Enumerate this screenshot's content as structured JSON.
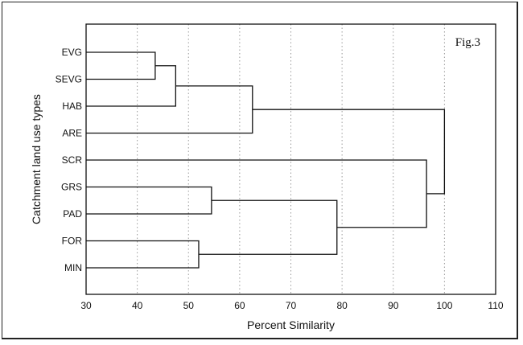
{
  "chart_data": {
    "type": "dendrogram",
    "annotation": "Fig.3",
    "xlabel": "Percent Similarity",
    "ylabel": "Catchment land use types",
    "xlim": [
      30,
      110
    ],
    "xticks": [
      30,
      40,
      50,
      60,
      70,
      80,
      90,
      100,
      110
    ],
    "grid": "vertical dotted",
    "leaves": [
      "EVG",
      "SEVG",
      "HAB",
      "ARE",
      "SCR",
      "GRS",
      "PAD",
      "FOR",
      "MIN"
    ],
    "merges": [
      {
        "id": "m1",
        "children": [
          "EVG",
          "SEVG"
        ],
        "height": 43.5
      },
      {
        "id": "m2",
        "children": [
          "m1",
          "HAB"
        ],
        "height": 47.5
      },
      {
        "id": "m3",
        "children": [
          "m2",
          "ARE"
        ],
        "height": 62.5
      },
      {
        "id": "m4",
        "children": [
          "FOR",
          "MIN"
        ],
        "height": 52
      },
      {
        "id": "m5",
        "children": [
          "GRS",
          "PAD"
        ],
        "height": 54.5
      },
      {
        "id": "m6",
        "children": [
          "m5",
          "m4"
        ],
        "height": 79
      },
      {
        "id": "m7",
        "children": [
          "SCR",
          "m6"
        ],
        "height": 96.5
      },
      {
        "id": "m8",
        "children": [
          "m3",
          "m7"
        ],
        "height": 100
      }
    ]
  }
}
